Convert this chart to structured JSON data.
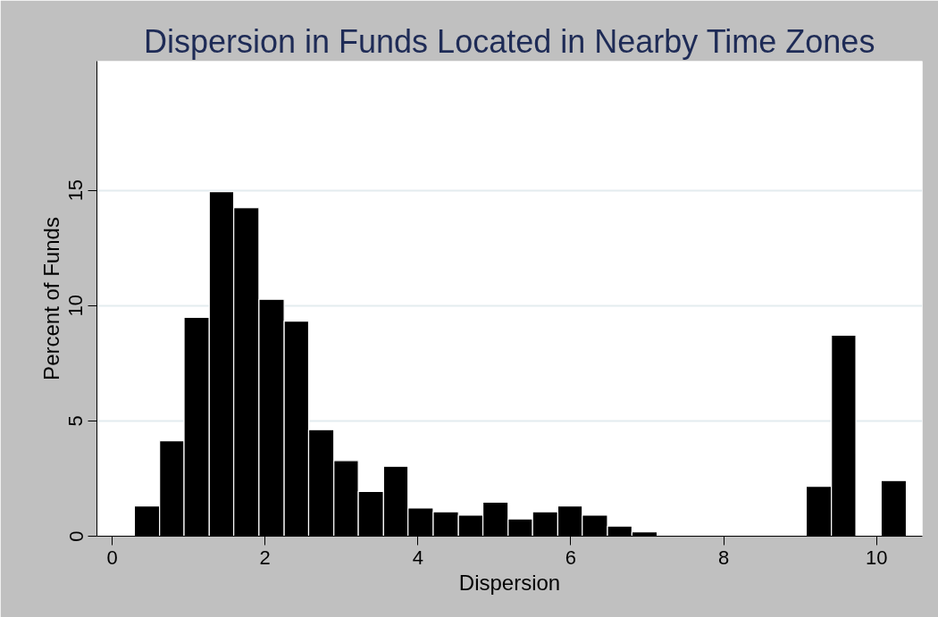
{
  "chart_data": {
    "type": "histogram",
    "title": "Dispersion in Funds Located in Nearby Time Zones",
    "xlabel": "Dispersion",
    "ylabel": "Percent of Funds",
    "bins": [
      0.29,
      0.62,
      0.94,
      1.27,
      1.59,
      1.92,
      2.25,
      2.57,
      2.9,
      3.22,
      3.55,
      3.87,
      4.2,
      4.53,
      4.85,
      5.18,
      5.5,
      5.83,
      6.15,
      6.48,
      6.8,
      7.13,
      9.08,
      9.41,
      9.73,
      10.06,
      10.39
    ],
    "values": [
      1.31,
      4.14,
      9.49,
      14.94,
      14.24,
      10.27,
      9.33,
      4.62,
      3.28,
      1.94,
      3.03,
      1.22,
      1.06,
      0.91,
      1.48,
      0.75,
      1.06,
      1.31,
      0.91,
      0.44,
      0.19,
      0,
      2.16,
      8.72,
      0,
      2.41
    ],
    "color": "#000000",
    "xlim": [
      -0.2,
      10.6
    ],
    "ylim": [
      0,
      20.6
    ],
    "xticks": [
      0,
      2,
      4,
      6,
      8,
      10
    ],
    "yticks": [
      0,
      5,
      10,
      15
    ],
    "grid": "y"
  }
}
